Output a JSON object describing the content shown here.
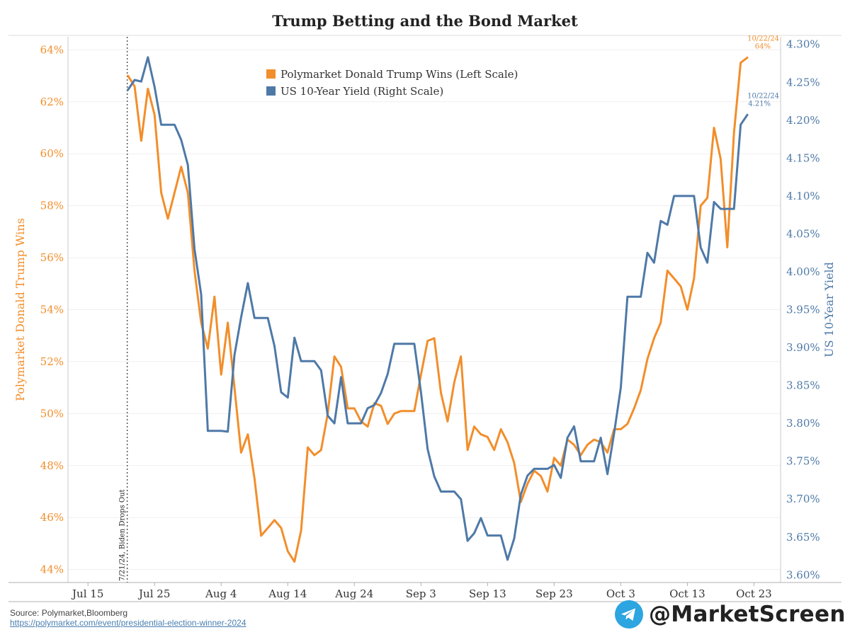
{
  "chart_data": {
    "type": "line",
    "title": "Trump Betting and the Bond Market",
    "x_ticks": [
      "Jul 15",
      "Jul 25",
      "Aug 4",
      "Aug 14",
      "Aug 24",
      "Sep 3",
      "Sep 13",
      "Sep 23",
      "Oct 3",
      "Oct 13",
      "Oct 23"
    ],
    "left_axis": {
      "label": "Polymarket Donald Trump Wins",
      "ticks": [
        "44%",
        "46%",
        "48%",
        "50%",
        "52%",
        "54%",
        "56%",
        "58%",
        "60%",
        "62%",
        "64%"
      ],
      "ylim": [
        43.5,
        64.5
      ],
      "color": "#f28e2b"
    },
    "right_axis": {
      "label": "US 10-Year Yield",
      "ticks": [
        "3.60%",
        "3.65%",
        "3.70%",
        "3.75%",
        "3.80%",
        "3.85%",
        "3.90%",
        "3.95%",
        "4.00%",
        "4.05%",
        "4.10%",
        "4.15%",
        "4.20%",
        "4.25%",
        "4.30%"
      ],
      "ylim": [
        3.59,
        4.31
      ],
      "color": "#4e79a7"
    },
    "x_range": [
      "2024-07-12",
      "2024-10-27"
    ],
    "grid": "horizontal",
    "legend_position": "top-center",
    "vertical_marker": {
      "date": "2024-07-21",
      "label": "7/21/24, Biden Drops Out"
    },
    "series": [
      {
        "name": "Polymarket Donald Trump Wins (Left Scale)",
        "axis": "left",
        "color": "#f28e2b",
        "end_label": [
          "10/22/24",
          "64%"
        ],
        "points": [
          [
            "2024-07-21",
            63.0
          ],
          [
            "2024-07-22",
            62.6
          ],
          [
            "2024-07-23",
            60.5
          ],
          [
            "2024-07-24",
            62.5
          ],
          [
            "2024-07-25",
            61.5
          ],
          [
            "2024-07-26",
            58.5
          ],
          [
            "2024-07-27",
            57.5
          ],
          [
            "2024-07-28",
            58.5
          ],
          [
            "2024-07-29",
            59.5
          ],
          [
            "2024-07-30",
            58.5
          ],
          [
            "2024-07-31",
            55.5
          ],
          [
            "2024-08-01",
            53.5
          ],
          [
            "2024-08-02",
            52.5
          ],
          [
            "2024-08-03",
            54.5
          ],
          [
            "2024-08-04",
            51.5
          ],
          [
            "2024-08-05",
            53.5
          ],
          [
            "2024-08-06",
            51.0
          ],
          [
            "2024-08-07",
            48.5
          ],
          [
            "2024-08-08",
            49.2
          ],
          [
            "2024-08-09",
            47.5
          ],
          [
            "2024-08-10",
            45.3
          ],
          [
            "2024-08-11",
            45.6
          ],
          [
            "2024-08-12",
            45.9
          ],
          [
            "2024-08-13",
            45.6
          ],
          [
            "2024-08-14",
            44.7
          ],
          [
            "2024-08-15",
            44.3
          ],
          [
            "2024-08-16",
            45.5
          ],
          [
            "2024-08-17",
            48.7
          ],
          [
            "2024-08-18",
            48.4
          ],
          [
            "2024-08-19",
            48.6
          ],
          [
            "2024-08-20",
            50.0
          ],
          [
            "2024-08-21",
            52.2
          ],
          [
            "2024-08-22",
            51.8
          ],
          [
            "2024-08-23",
            50.2
          ],
          [
            "2024-08-24",
            50.2
          ],
          [
            "2024-08-25",
            49.7
          ],
          [
            "2024-08-26",
            49.5
          ],
          [
            "2024-08-27",
            50.4
          ],
          [
            "2024-08-28",
            50.3
          ],
          [
            "2024-08-29",
            49.6
          ],
          [
            "2024-08-30",
            50.0
          ],
          [
            "2024-08-31",
            50.1
          ],
          [
            "2024-09-01",
            50.1
          ],
          [
            "2024-09-02",
            50.1
          ],
          [
            "2024-09-03",
            51.5
          ],
          [
            "2024-09-04",
            52.8
          ],
          [
            "2024-09-05",
            52.9
          ],
          [
            "2024-09-06",
            50.8
          ],
          [
            "2024-09-07",
            49.7
          ],
          [
            "2024-09-08",
            51.2
          ],
          [
            "2024-09-09",
            52.2
          ],
          [
            "2024-09-10",
            48.6
          ],
          [
            "2024-09-11",
            49.5
          ],
          [
            "2024-09-12",
            49.2
          ],
          [
            "2024-09-13",
            49.1
          ],
          [
            "2024-09-14",
            48.6
          ],
          [
            "2024-09-15",
            49.4
          ],
          [
            "2024-09-16",
            48.9
          ],
          [
            "2024-09-17",
            48.1
          ],
          [
            "2024-09-18",
            46.6
          ],
          [
            "2024-09-19",
            47.3
          ],
          [
            "2024-09-20",
            47.8
          ],
          [
            "2024-09-21",
            47.6
          ],
          [
            "2024-09-22",
            47.0
          ],
          [
            "2024-09-23",
            48.3
          ],
          [
            "2024-09-24",
            48.0
          ],
          [
            "2024-09-25",
            49.0
          ],
          [
            "2024-09-26",
            48.8
          ],
          [
            "2024-09-27",
            48.4
          ],
          [
            "2024-09-28",
            48.8
          ],
          [
            "2024-09-29",
            49.0
          ],
          [
            "2024-09-30",
            48.9
          ],
          [
            "2024-10-01",
            48.5
          ],
          [
            "2024-10-02",
            49.4
          ],
          [
            "2024-10-03",
            49.4
          ],
          [
            "2024-10-04",
            49.6
          ],
          [
            "2024-10-05",
            50.2
          ],
          [
            "2024-10-06",
            50.9
          ],
          [
            "2024-10-07",
            52.1
          ],
          [
            "2024-10-08",
            52.9
          ],
          [
            "2024-10-09",
            53.5
          ],
          [
            "2024-10-10",
            55.5
          ],
          [
            "2024-10-11",
            55.2
          ],
          [
            "2024-10-12",
            54.9
          ],
          [
            "2024-10-13",
            54.0
          ],
          [
            "2024-10-14",
            55.2
          ],
          [
            "2024-10-15",
            58.0
          ],
          [
            "2024-10-16",
            58.3
          ],
          [
            "2024-10-17",
            61.0
          ],
          [
            "2024-10-18",
            59.8
          ],
          [
            "2024-10-19",
            56.4
          ],
          [
            "2024-10-20",
            60.8
          ],
          [
            "2024-10-21",
            63.5
          ],
          [
            "2024-10-22",
            63.7
          ]
        ]
      },
      {
        "name": "US 10-Year Yield (Right Scale)",
        "axis": "right",
        "color": "#4e79a7",
        "end_label": [
          "10/22/24",
          "4.21%"
        ],
        "points": [
          [
            "2024-07-21",
            4.24
          ],
          [
            "2024-07-22",
            4.253
          ],
          [
            "2024-07-23",
            4.251
          ],
          [
            "2024-07-24",
            4.283
          ],
          [
            "2024-07-25",
            4.244
          ],
          [
            "2024-07-26",
            4.194
          ],
          [
            "2024-07-28",
            4.194
          ],
          [
            "2024-07-29",
            4.174
          ],
          [
            "2024-07-30",
            4.141
          ],
          [
            "2024-07-31",
            4.03
          ],
          [
            "2024-08-01",
            3.97
          ],
          [
            "2024-08-02",
            3.79
          ],
          [
            "2024-08-04",
            3.79
          ],
          [
            "2024-08-05",
            3.789
          ],
          [
            "2024-08-06",
            3.89
          ],
          [
            "2024-08-07",
            3.94
          ],
          [
            "2024-08-08",
            3.985
          ],
          [
            "2024-08-09",
            3.939
          ],
          [
            "2024-08-11",
            3.939
          ],
          [
            "2024-08-12",
            3.902
          ],
          [
            "2024-08-13",
            3.841
          ],
          [
            "2024-08-14",
            3.834
          ],
          [
            "2024-08-15",
            3.913
          ],
          [
            "2024-08-16",
            3.882
          ],
          [
            "2024-08-18",
            3.882
          ],
          [
            "2024-08-19",
            3.87
          ],
          [
            "2024-08-20",
            3.81
          ],
          [
            "2024-08-21",
            3.8
          ],
          [
            "2024-08-22",
            3.861
          ],
          [
            "2024-08-23",
            3.8
          ],
          [
            "2024-08-25",
            3.8
          ],
          [
            "2024-08-26",
            3.82
          ],
          [
            "2024-08-27",
            3.824
          ],
          [
            "2024-08-28",
            3.84
          ],
          [
            "2024-08-29",
            3.865
          ],
          [
            "2024-08-30",
            3.905
          ],
          [
            "2024-09-02",
            3.905
          ],
          [
            "2024-09-03",
            3.841
          ],
          [
            "2024-09-04",
            3.766
          ],
          [
            "2024-09-05",
            3.73
          ],
          [
            "2024-09-06",
            3.71
          ],
          [
            "2024-09-08",
            3.71
          ],
          [
            "2024-09-09",
            3.7
          ],
          [
            "2024-09-10",
            3.645
          ],
          [
            "2024-09-11",
            3.655
          ],
          [
            "2024-09-12",
            3.675
          ],
          [
            "2024-09-13",
            3.652
          ],
          [
            "2024-09-15",
            3.652
          ],
          [
            "2024-09-16",
            3.62
          ],
          [
            "2024-09-17",
            3.648
          ],
          [
            "2024-09-18",
            3.706
          ],
          [
            "2024-09-19",
            3.731
          ],
          [
            "2024-09-20",
            3.74
          ],
          [
            "2024-09-22",
            3.74
          ],
          [
            "2024-09-23",
            3.745
          ],
          [
            "2024-09-24",
            3.728
          ],
          [
            "2024-09-25",
            3.781
          ],
          [
            "2024-09-26",
            3.796
          ],
          [
            "2024-09-27",
            3.75
          ],
          [
            "2024-09-29",
            3.75
          ],
          [
            "2024-09-30",
            3.781
          ],
          [
            "2024-10-01",
            3.733
          ],
          [
            "2024-10-02",
            3.787
          ],
          [
            "2024-10-03",
            3.847
          ],
          [
            "2024-10-04",
            3.967
          ],
          [
            "2024-10-06",
            3.967
          ],
          [
            "2024-10-07",
            4.025
          ],
          [
            "2024-10-08",
            4.012
          ],
          [
            "2024-10-09",
            4.067
          ],
          [
            "2024-10-10",
            4.062
          ],
          [
            "2024-10-11",
            4.1
          ],
          [
            "2024-10-14",
            4.1
          ],
          [
            "2024-10-15",
            4.032
          ],
          [
            "2024-10-16",
            4.012
          ],
          [
            "2024-10-17",
            4.092
          ],
          [
            "2024-10-18",
            4.083
          ],
          [
            "2024-10-20",
            4.083
          ],
          [
            "2024-10-21",
            4.194
          ],
          [
            "2024-10-22",
            4.207
          ]
        ]
      }
    ]
  },
  "source": {
    "label": "Source: Polymarket,Bloomberg",
    "url": "https://polymarket.com/event/presidential-election-winner-2024"
  },
  "brand": {
    "handle": "@MarketScreen",
    "icon": "telegram-icon",
    "icon_color": "#2ca5e0"
  }
}
